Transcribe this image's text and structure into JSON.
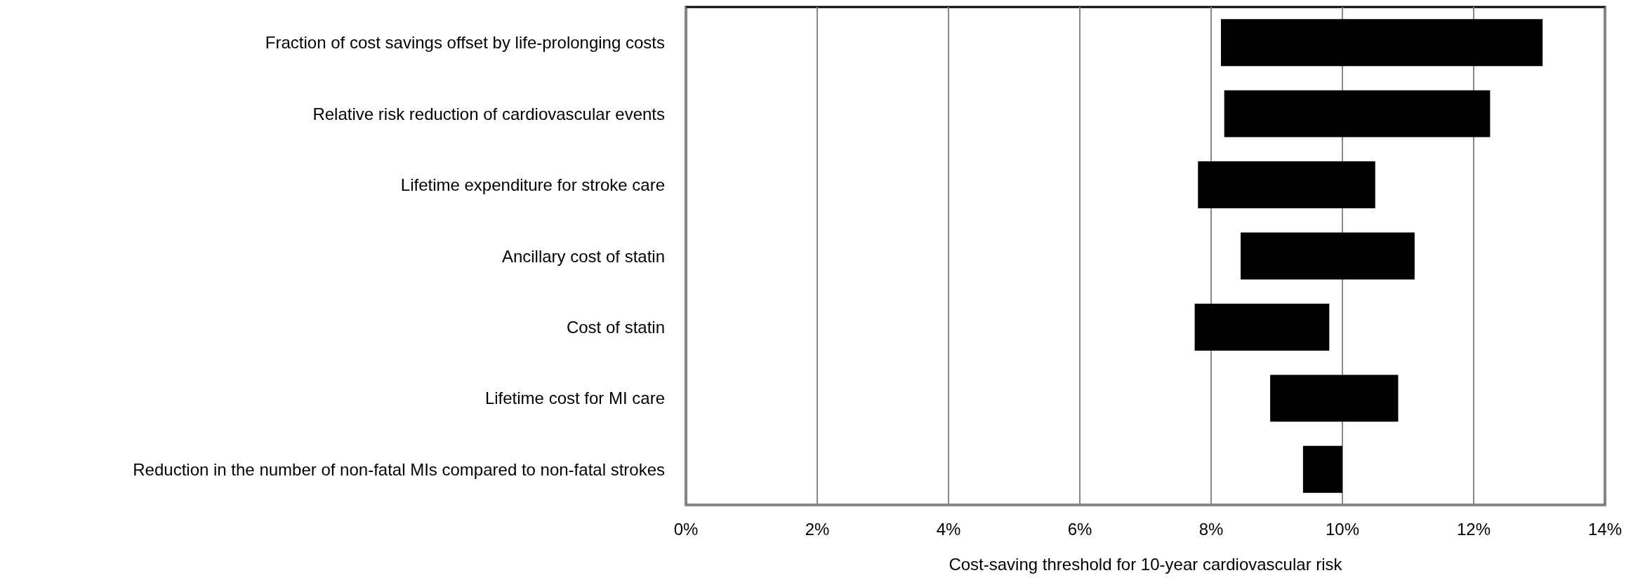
{
  "chart_data": {
    "type": "bar",
    "orientation": "horizontal",
    "xlabel": "Cost-saving threshold for 10-year cardiovascular risk",
    "categories": [
      "Fraction of cost savings offset by life-prolonging costs",
      "Relative risk reduction of cardiovascular events",
      "Lifetime expenditure for stroke care",
      "Ancillary cost of statin",
      "Cost of statin",
      "Lifetime cost for MI care",
      "Reduction in the number of non-fatal MIs compared to non-fatal strokes"
    ],
    "base": [
      8.15,
      8.2,
      7.8,
      8.45,
      7.75,
      8.9,
      9.4
    ],
    "values": [
      4.9,
      4.05,
      2.7,
      2.65,
      2.05,
      1.95,
      0.6
    ],
    "color": "#000000",
    "xlim": [
      0,
      14
    ],
    "xticks": [
      {
        "value": 0,
        "label": "0%"
      },
      {
        "value": 2,
        "label": "2%"
      },
      {
        "value": 4,
        "label": "4%"
      },
      {
        "value": 6,
        "label": "6%"
      },
      {
        "value": 8,
        "label": "8%"
      },
      {
        "value": 10,
        "label": "10%"
      },
      {
        "value": 12,
        "label": "12%"
      },
      {
        "value": 14,
        "label": "14%"
      }
    ],
    "grid": "x"
  }
}
